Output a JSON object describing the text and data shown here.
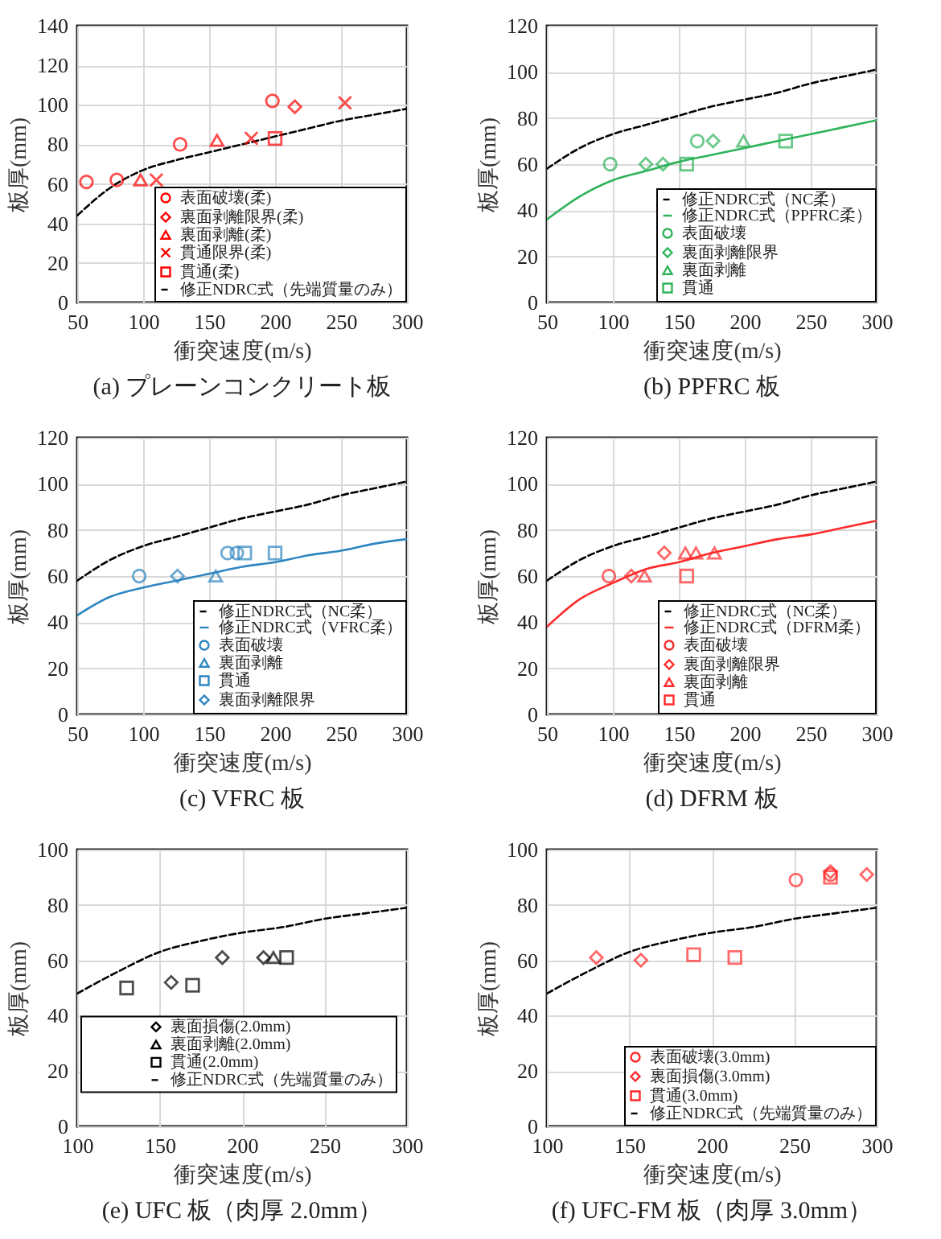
{
  "chart_data": [
    {
      "type": "scatter",
      "title": "(a) プレーンコンクリート板",
      "xlabel": "衝突速度(m/s)",
      "ylabel": "板厚(mm)",
      "xlim": [
        50,
        300
      ],
      "xticks": [
        50,
        100,
        150,
        200,
        250,
        300
      ],
      "ylim": [
        0,
        140
      ],
      "yticks": [
        0,
        20,
        40,
        60,
        80,
        100,
        120,
        140
      ],
      "grid": true,
      "legend": "bottom right",
      "series": [
        {
          "name": "表面破壊(柔)",
          "color": "#ff0000",
          "marker": "circle",
          "x": [
            57,
            80,
            128,
            198
          ],
          "values": [
            61,
            62,
            80,
            102
          ]
        },
        {
          "name": "裏面剥離限界(柔)",
          "color": "#ff0000",
          "marker": "diamond",
          "x": [
            215
          ],
          "values": [
            99
          ]
        },
        {
          "name": "裏面剥離(柔)",
          "color": "#ff0000",
          "marker": "triangle",
          "x": [
            98,
            156
          ],
          "values": [
            62,
            82
          ]
        },
        {
          "name": "貫通限界(柔)",
          "color": "#ff0000",
          "marker": "cross",
          "x": [
            110,
            182,
            253
          ],
          "values": [
            62,
            83,
            101
          ]
        },
        {
          "name": "貫通(柔)",
          "color": "#ff0000",
          "marker": "square",
          "x": [
            200
          ],
          "values": [
            83
          ]
        },
        {
          "type": "line",
          "name": "修正NDRC式（先端質量のみ）",
          "color": "#000000",
          "line_style": "dashed",
          "x": [
            50,
            75,
            100,
            125,
            150,
            175,
            200,
            225,
            250,
            275,
            300
          ],
          "values": [
            44,
            58,
            67,
            72,
            76,
            80,
            84,
            88,
            92,
            95,
            98
          ]
        }
      ]
    },
    {
      "type": "scatter",
      "title": "(b) PPFRC 板",
      "xlabel": "衝突速度(m/s)",
      "ylabel": "板厚(mm)",
      "xlim": [
        50,
        300
      ],
      "xticks": [
        50,
        100,
        150,
        200,
        250,
        300
      ],
      "ylim": [
        0,
        120
      ],
      "yticks": [
        0,
        20,
        40,
        60,
        80,
        100,
        120
      ],
      "grid": true,
      "legend": "bottom right",
      "series": [
        {
          "type": "line",
          "name": "修正NDRC式（NC柔）",
          "color": "#000000",
          "line_style": "dashed",
          "x": [
            50,
            75,
            100,
            125,
            150,
            175,
            200,
            225,
            250,
            275,
            300
          ],
          "values": [
            58,
            67,
            73,
            77,
            81,
            85,
            88,
            91,
            95,
            98,
            101
          ]
        },
        {
          "type": "line",
          "name": "修正NDRC式（PPFRC柔）",
          "color": "#2eb35a",
          "line_style": "solid",
          "x": [
            50,
            75,
            100,
            125,
            150,
            175,
            200,
            225,
            250,
            275,
            300
          ],
          "values": [
            36,
            46,
            53,
            57,
            61,
            64,
            67,
            70,
            73,
            76,
            79
          ]
        },
        {
          "name": "表面破壊",
          "color": "#2eb35a",
          "marker": "circle",
          "x": [
            98,
            164
          ],
          "values": [
            60,
            70
          ]
        },
        {
          "name": "裏面剥離限界",
          "color": "#2eb35a",
          "marker": "diamond",
          "x": [
            125,
            138,
            176
          ],
          "values": [
            60,
            60,
            70
          ]
        },
        {
          "name": "裏面剥離",
          "color": "#2eb35a",
          "marker": "triangle",
          "x": [
            199
          ],
          "values": [
            70
          ]
        },
        {
          "name": "貫通",
          "color": "#2eb35a",
          "marker": "square",
          "x": [
            156,
            231
          ],
          "values": [
            60,
            70
          ]
        }
      ]
    },
    {
      "type": "scatter",
      "title": "(c) VFRC 板",
      "xlabel": "衝突速度(m/s)",
      "ylabel": "板厚(mm)",
      "xlim": [
        50,
        300
      ],
      "xticks": [
        50,
        100,
        150,
        200,
        250,
        300
      ],
      "ylim": [
        0,
        120
      ],
      "yticks": [
        0,
        20,
        40,
        60,
        80,
        100,
        120
      ],
      "grid": true,
      "legend": "bottom right",
      "series": [
        {
          "type": "line",
          "name": "修正NDRC式（NC柔）",
          "color": "#000000",
          "line_style": "dashed",
          "x": [
            50,
            75,
            100,
            125,
            150,
            175,
            200,
            225,
            250,
            275,
            300
          ],
          "values": [
            58,
            67,
            73,
            77,
            81,
            85,
            88,
            91,
            95,
            98,
            101
          ]
        },
        {
          "type": "line",
          "name": "修正NDRC式（VFRC柔）",
          "color": "#2e86c1",
          "line_style": "solid",
          "x": [
            50,
            75,
            100,
            125,
            150,
            175,
            200,
            225,
            250,
            275,
            300
          ],
          "values": [
            43,
            51,
            55,
            58,
            61,
            64,
            66,
            69,
            71,
            74,
            76
          ]
        },
        {
          "name": "表面破壊",
          "color": "#2e86c1",
          "marker": "circle",
          "x": [
            97,
            164,
            171
          ],
          "values": [
            60,
            70,
            70
          ]
        },
        {
          "name": "裏面剥離",
          "color": "#2e86c1",
          "marker": "triangle",
          "x": [
            155
          ],
          "values": [
            60
          ]
        },
        {
          "name": "貫通",
          "color": "#2e86c1",
          "marker": "square",
          "x": [
            177,
            200
          ],
          "values": [
            70,
            70
          ]
        },
        {
          "name": "裏面剥離限界",
          "color": "#2e86c1",
          "marker": "diamond",
          "x": [
            126
          ],
          "values": [
            60
          ]
        }
      ]
    },
    {
      "type": "scatter",
      "title": "(d) DFRM 板",
      "xlabel": "衝突速度(m/s)",
      "ylabel": "板厚(mm)",
      "xlim": [
        50,
        300
      ],
      "xticks": [
        50,
        100,
        150,
        200,
        250,
        300
      ],
      "ylim": [
        0,
        120
      ],
      "yticks": [
        0,
        20,
        40,
        60,
        80,
        100,
        120
      ],
      "grid": true,
      "legend": "bottom right",
      "series": [
        {
          "type": "line",
          "name": "修正NDRC式（NC柔）",
          "color": "#000000",
          "line_style": "dashed",
          "x": [
            50,
            75,
            100,
            125,
            150,
            175,
            200,
            225,
            250,
            275,
            300
          ],
          "values": [
            58,
            67,
            73,
            77,
            81,
            85,
            88,
            91,
            95,
            98,
            101
          ]
        },
        {
          "type": "line",
          "name": "修正NDRC式（DFRM柔）",
          "color": "#ff2a2a",
          "line_style": "solid",
          "x": [
            50,
            75,
            100,
            125,
            150,
            175,
            200,
            225,
            250,
            275,
            300
          ],
          "values": [
            38,
            50,
            57,
            63,
            66,
            70,
            73,
            76,
            78,
            81,
            84
          ]
        },
        {
          "name": "表面破壊",
          "color": "#ff2a2a",
          "marker": "circle",
          "x": [
            97
          ],
          "values": [
            60
          ]
        },
        {
          "name": "裏面剥離限界",
          "color": "#ff2a2a",
          "marker": "diamond",
          "x": [
            114,
            139
          ],
          "values": [
            60,
            70
          ]
        },
        {
          "name": "裏面剥離",
          "color": "#ff2a2a",
          "marker": "triangle",
          "x": [
            124,
            155,
            163,
            177
          ],
          "values": [
            60,
            70,
            70,
            70
          ]
        },
        {
          "name": "貫通",
          "color": "#ff2a2a",
          "marker": "square",
          "x": [
            156
          ],
          "values": [
            60
          ]
        }
      ]
    },
    {
      "type": "scatter",
      "title": "(e) UFC 板（肉厚 2.0mm）",
      "xlabel": "衝突速度(m/s)",
      "ylabel": "板厚(mm)",
      "xlim": [
        100,
        300
      ],
      "xticks": [
        100,
        150,
        200,
        250,
        300
      ],
      "ylim": [
        0,
        100
      ],
      "yticks": [
        0,
        20,
        40,
        60,
        80,
        100
      ],
      "grid": true,
      "legend": "bottom",
      "series": [
        {
          "name": "裏面損傷(2.0mm)",
          "color": "#000000",
          "marker": "diamond",
          "x": [
            157,
            188,
            213
          ],
          "values": [
            52,
            61,
            61
          ]
        },
        {
          "name": "裏面剥離(2.0mm)",
          "color": "#000000",
          "marker": "triangle",
          "x": [
            219
          ],
          "values": [
            61
          ]
        },
        {
          "name": "貫通(2.0mm)",
          "color": "#000000",
          "marker": "square",
          "x": [
            130,
            170,
            227
          ],
          "values": [
            50,
            51,
            61
          ]
        },
        {
          "type": "line",
          "name": "修正NDRC式（先端質量のみ）",
          "color": "#000000",
          "line_style": "dashed",
          "x": [
            100,
            125,
            150,
            175,
            200,
            225,
            250,
            275,
            300
          ],
          "values": [
            48,
            56,
            63,
            67,
            70,
            72,
            75,
            77,
            79
          ]
        }
      ]
    },
    {
      "type": "scatter",
      "title": "(f) UFC-FM 板（肉厚 3.0mm）",
      "xlabel": "衝突速度(m/s)",
      "ylabel": "板厚(mm)",
      "xlim": [
        100,
        300
      ],
      "xticks": [
        100,
        150,
        200,
        250,
        300
      ],
      "ylim": [
        0,
        100
      ],
      "yticks": [
        0,
        20,
        40,
        60,
        80,
        100
      ],
      "grid": true,
      "legend": "bottom right",
      "series": [
        {
          "name": "表面破壊(3.0mm)",
          "color": "#ff2a2a",
          "marker": "circle",
          "x": [
            251,
            272
          ],
          "values": [
            89,
            91
          ]
        },
        {
          "name": "裏面損傷(3.0mm)",
          "color": "#ff2a2a",
          "marker": "diamond",
          "x": [
            130,
            157,
            272,
            294
          ],
          "values": [
            61,
            60,
            92,
            91
          ]
        },
        {
          "name": "貫通(3.0mm)",
          "color": "#ff2a2a",
          "marker": "square",
          "x": [
            189,
            214,
            272
          ],
          "values": [
            62,
            61,
            90
          ]
        },
        {
          "type": "line",
          "name": "修正NDRC式（先端質量のみ）",
          "color": "#000000",
          "line_style": "dashed",
          "x": [
            100,
            125,
            150,
            175,
            200,
            225,
            250,
            275,
            300
          ],
          "values": [
            48,
            56,
            63,
            67,
            70,
            72,
            75,
            77,
            79
          ]
        }
      ]
    }
  ]
}
